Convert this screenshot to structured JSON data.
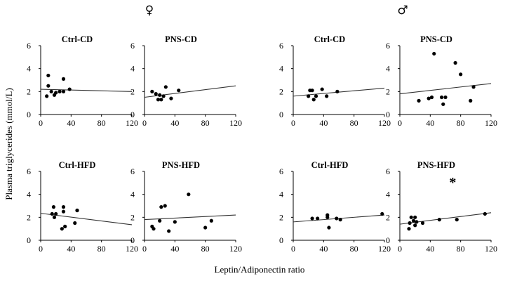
{
  "figure": {
    "ylabel": "Plasma triglycerides  (mmol/L)",
    "xlabel": "Leptin/Adiponectin ratio",
    "groups": [
      {
        "symbol": "♀",
        "name": "female"
      },
      {
        "symbol": "♂",
        "name": "male"
      }
    ]
  },
  "chart_data": [
    {
      "type": "scatter",
      "title": "Ctrl-CD",
      "group": "♀",
      "xlim": [
        0,
        120
      ],
      "ylim": [
        0,
        6
      ],
      "xticks": [
        0,
        40,
        80,
        120
      ],
      "yticks": [
        0,
        2,
        4,
        6
      ],
      "points": [
        [
          8,
          1.6
        ],
        [
          10,
          3.4
        ],
        [
          10,
          2.5
        ],
        [
          14,
          2.0
        ],
        [
          18,
          1.7
        ],
        [
          20,
          1.9
        ],
        [
          25,
          2.0
        ],
        [
          30,
          3.1
        ],
        [
          30,
          2.0
        ],
        [
          38,
          2.2
        ]
      ],
      "fit": [
        [
          0,
          2.2
        ],
        [
          120,
          2.0
        ]
      ],
      "annotation": ""
    },
    {
      "type": "scatter",
      "title": "PNS-CD",
      "group": "♀",
      "xlim": [
        0,
        120
      ],
      "ylim": [
        0,
        6
      ],
      "xticks": [
        0,
        40,
        80,
        120
      ],
      "yticks": [
        0,
        2,
        4,
        6
      ],
      "points": [
        [
          10,
          2.0
        ],
        [
          15,
          1.8
        ],
        [
          18,
          1.3
        ],
        [
          20,
          1.7
        ],
        [
          22,
          1.3
        ],
        [
          25,
          1.6
        ],
        [
          28,
          2.4
        ],
        [
          35,
          1.4
        ],
        [
          45,
          2.1
        ]
      ],
      "fit": [
        [
          0,
          1.5
        ],
        [
          120,
          2.5
        ]
      ],
      "annotation": ""
    },
    {
      "type": "scatter",
      "title": "Ctrl-CD",
      "group": "♂",
      "xlim": [
        0,
        120
      ],
      "ylim": [
        0,
        6
      ],
      "xticks": [
        0,
        40,
        80,
        120
      ],
      "yticks": [
        0,
        2,
        4,
        6
      ],
      "points": [
        [
          20,
          1.6
        ],
        [
          22,
          2.1
        ],
        [
          25,
          2.1
        ],
        [
          27,
          1.3
        ],
        [
          30,
          1.6
        ],
        [
          38,
          2.2
        ],
        [
          44,
          1.6
        ],
        [
          58,
          2.0
        ]
      ],
      "fit": [
        [
          0,
          1.6
        ],
        [
          120,
          2.3
        ]
      ],
      "annotation": ""
    },
    {
      "type": "scatter",
      "title": "PNS-CD",
      "group": "♂",
      "xlim": [
        0,
        120
      ],
      "ylim": [
        0,
        6
      ],
      "xticks": [
        0,
        40,
        80,
        120
      ],
      "yticks": [
        0,
        2,
        4,
        6
      ],
      "points": [
        [
          25,
          1.2
        ],
        [
          38,
          1.4
        ],
        [
          42,
          1.5
        ],
        [
          45,
          5.3
        ],
        [
          55,
          1.5
        ],
        [
          57,
          0.9
        ],
        [
          60,
          1.5
        ],
        [
          73,
          4.5
        ],
        [
          80,
          3.5
        ],
        [
          93,
          1.2
        ],
        [
          97,
          2.4
        ]
      ],
      "fit": [
        [
          0,
          1.8
        ],
        [
          120,
          2.7
        ]
      ],
      "annotation": ""
    },
    {
      "type": "scatter",
      "title": "Ctrl-HFD",
      "group": "♀",
      "xlim": [
        0,
        120
      ],
      "ylim": [
        0,
        6
      ],
      "xticks": [
        0,
        40,
        80,
        120
      ],
      "yticks": [
        0,
        2,
        4,
        6
      ],
      "points": [
        [
          15,
          2.3
        ],
        [
          17,
          2.9
        ],
        [
          18,
          2.0
        ],
        [
          20,
          2.3
        ],
        [
          28,
          1.0
        ],
        [
          30,
          2.9
        ],
        [
          30,
          2.5
        ],
        [
          32,
          1.2
        ],
        [
          45,
          1.5
        ],
        [
          48,
          2.6
        ],
        [
          48,
          2.6
        ]
      ],
      "fit": [
        [
          0,
          2.35
        ],
        [
          120,
          1.35
        ]
      ],
      "annotation": ""
    },
    {
      "type": "scatter",
      "title": "PNS-HFD",
      "group": "♀",
      "xlim": [
        0,
        120
      ],
      "ylim": [
        0,
        6
      ],
      "xticks": [
        0,
        40,
        80,
        120
      ],
      "yticks": [
        0,
        2,
        4,
        6
      ],
      "points": [
        [
          10,
          1.2
        ],
        [
          12,
          1.0
        ],
        [
          20,
          1.7
        ],
        [
          22,
          2.9
        ],
        [
          27,
          3.0
        ],
        [
          32,
          0.8
        ],
        [
          40,
          1.6
        ],
        [
          58,
          4.0
        ],
        [
          80,
          1.1
        ],
        [
          88,
          1.7
        ]
      ],
      "fit": [
        [
          0,
          1.8
        ],
        [
          120,
          2.2
        ]
      ],
      "annotation": ""
    },
    {
      "type": "scatter",
      "title": "Ctrl-HFD",
      "group": "♂",
      "xlim": [
        0,
        120
      ],
      "ylim": [
        0,
        6
      ],
      "xticks": [
        0,
        40,
        80,
        120
      ],
      "yticks": [
        0,
        2,
        4,
        6
      ],
      "points": [
        [
          25,
          1.9
        ],
        [
          32,
          1.9
        ],
        [
          45,
          2.0
        ],
        [
          45,
          2.2
        ],
        [
          47,
          1.1
        ],
        [
          57,
          1.9
        ],
        [
          62,
          1.8
        ],
        [
          117,
          2.3
        ]
      ],
      "fit": [
        [
          0,
          1.6
        ],
        [
          120,
          2.2
        ]
      ],
      "annotation": ""
    },
    {
      "type": "scatter",
      "title": "PNS-HFD",
      "group": "♂",
      "xlim": [
        0,
        120
      ],
      "ylim": [
        0,
        6
      ],
      "xticks": [
        0,
        40,
        80,
        120
      ],
      "yticks": [
        0,
        2,
        4,
        6
      ],
      "points": [
        [
          12,
          1.0
        ],
        [
          13,
          1.5
        ],
        [
          15,
          2.0
        ],
        [
          18,
          1.7
        ],
        [
          20,
          2.0
        ],
        [
          20,
          1.3
        ],
        [
          22,
          1.6
        ],
        [
          30,
          1.5
        ],
        [
          52,
          1.8
        ],
        [
          75,
          1.8
        ],
        [
          112,
          2.3
        ]
      ],
      "fit": [
        [
          0,
          1.4
        ],
        [
          120,
          2.4
        ]
      ],
      "annotation": "*"
    }
  ]
}
